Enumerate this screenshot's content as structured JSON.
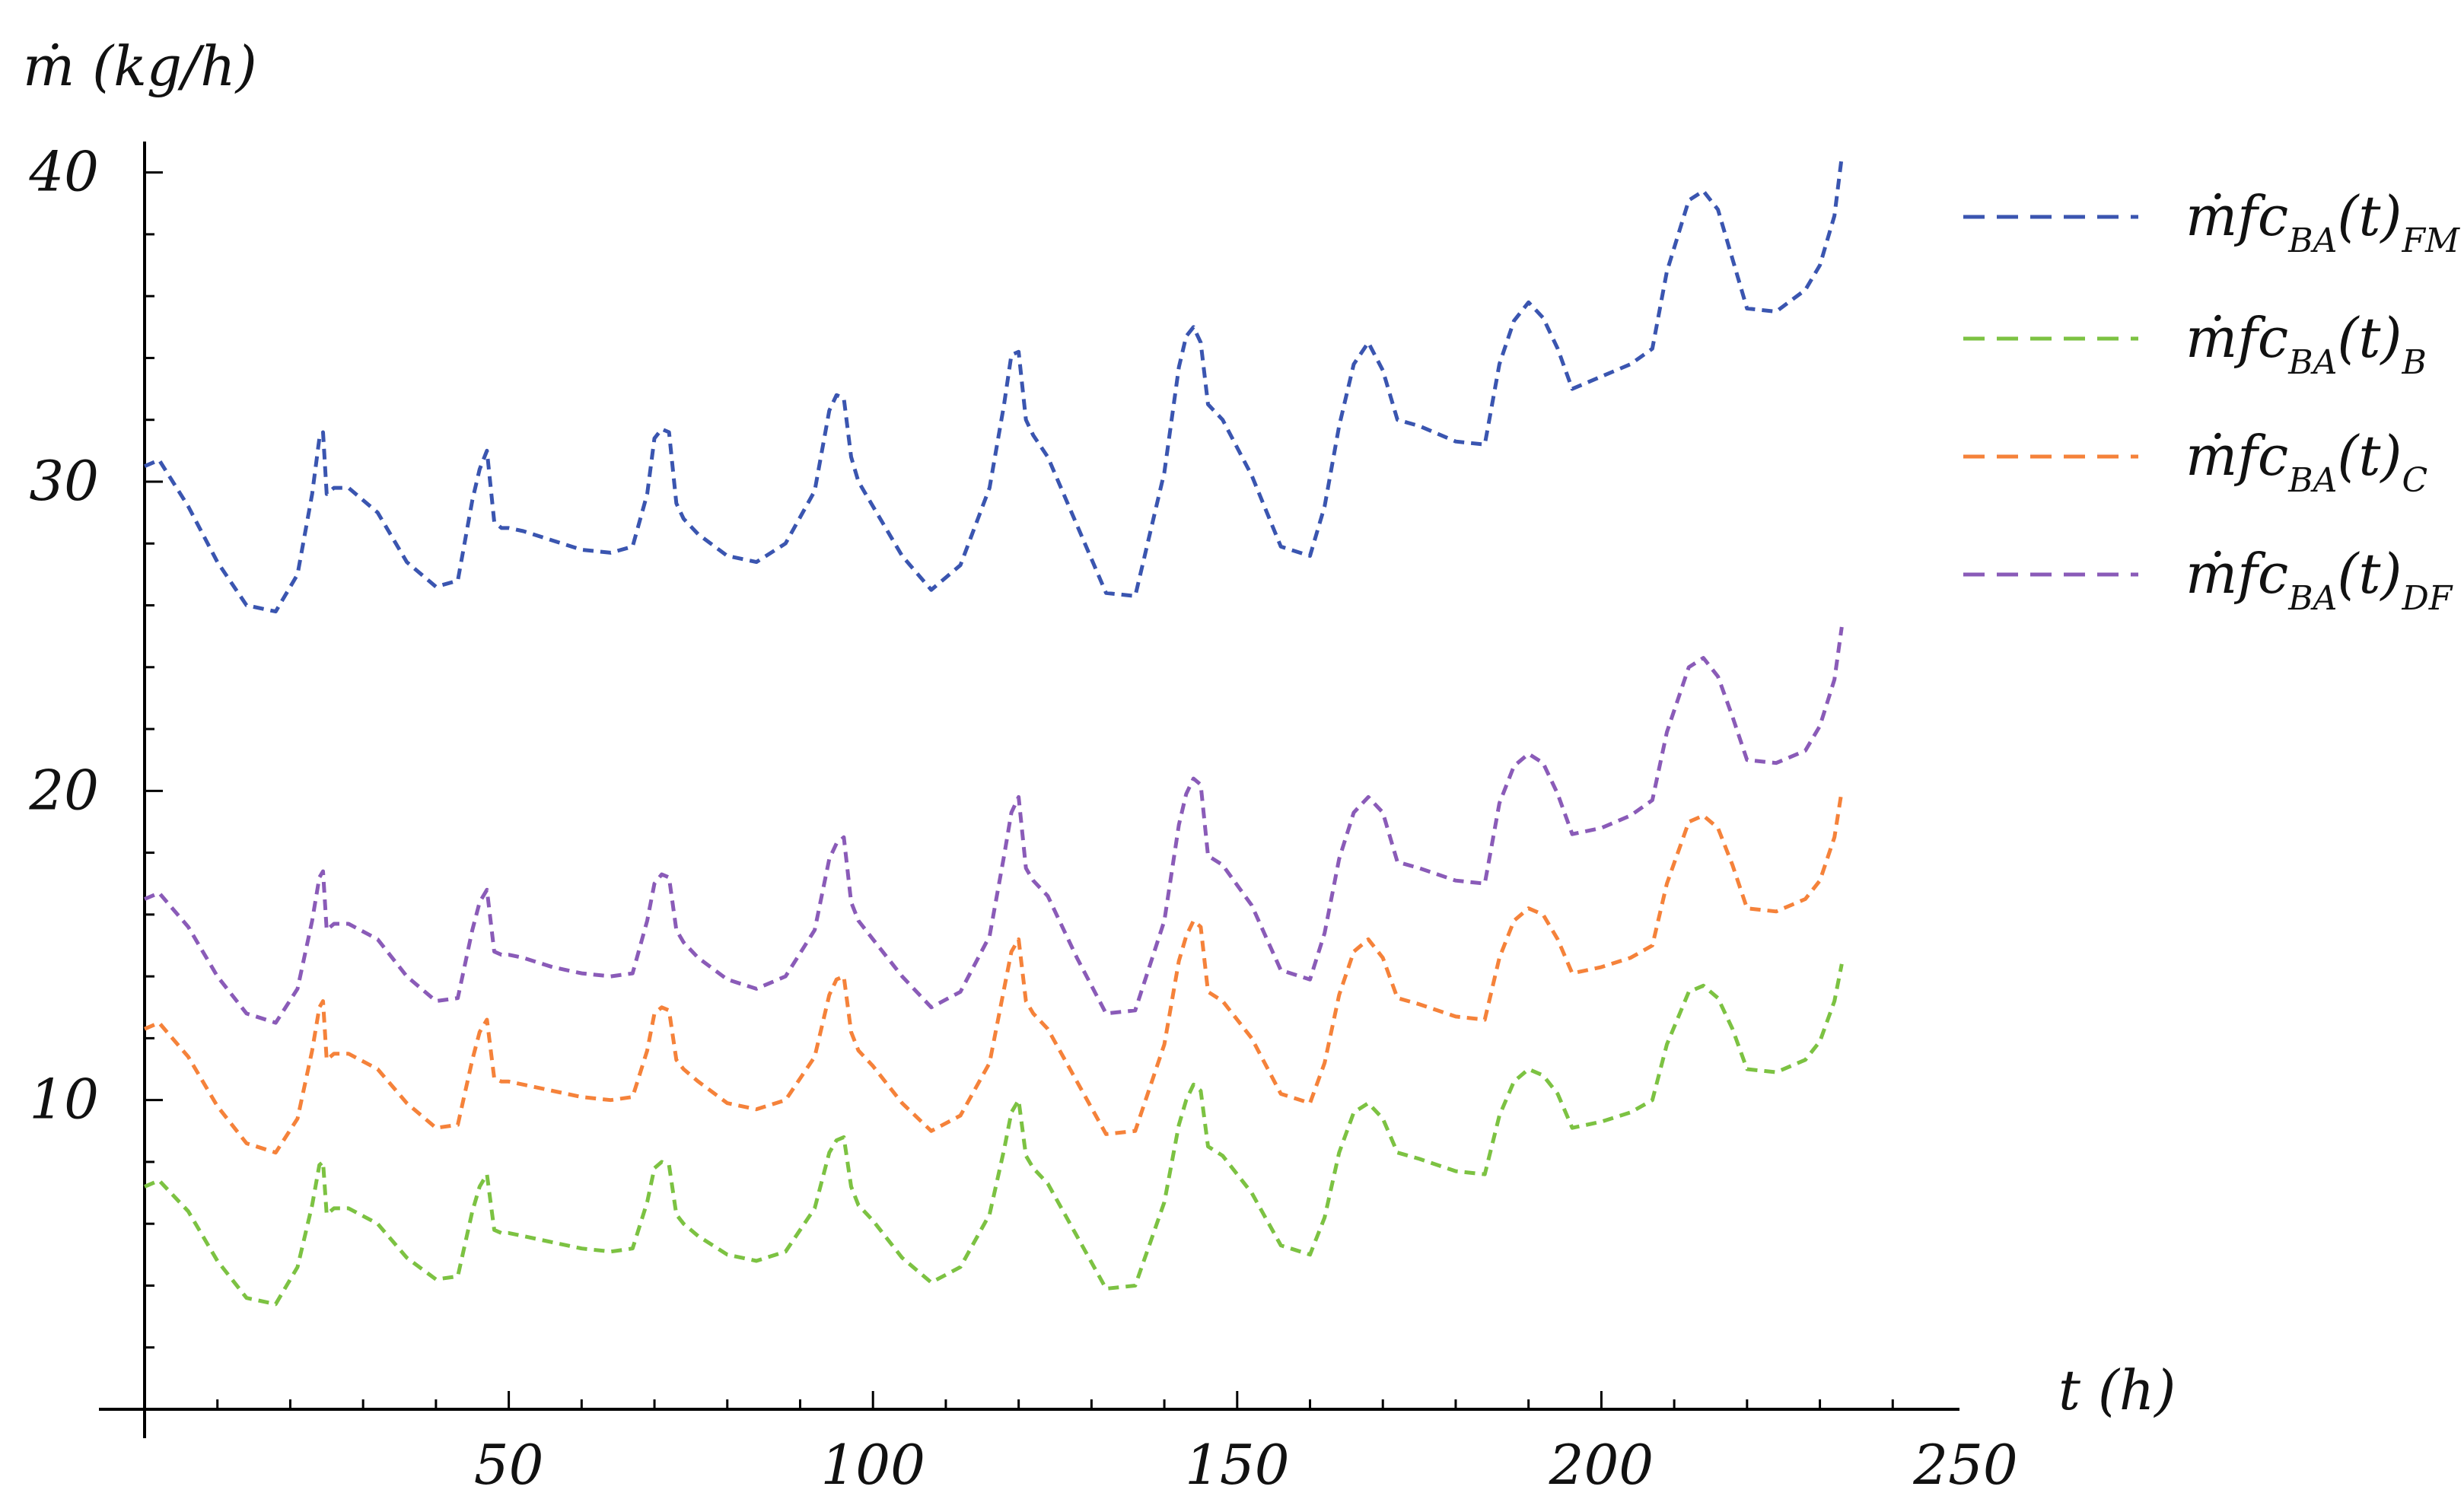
{
  "chart_data": {
    "type": "line",
    "title": "",
    "xlabel": "t (h)",
    "ylabel": "ṁ (kg/h)",
    "xlim": [
      0,
      250
    ],
    "ylim": [
      0,
      41
    ],
    "x_ticks": [
      50,
      100,
      150,
      200,
      250
    ],
    "x_tick_labels": [
      "50",
      "100",
      "150",
      "200",
      "250"
    ],
    "y_ticks": [
      10,
      20,
      30,
      40
    ],
    "y_tick_labels": [
      "10",
      "20",
      "30",
      "40"
    ],
    "grid": false,
    "legend_position": "top-right",
    "x": [
      0,
      2,
      6,
      10,
      14,
      18,
      21,
      23,
      24,
      24.5,
      25,
      26,
      28,
      32,
      36,
      40,
      43,
      45,
      46,
      47,
      48,
      49,
      50,
      52,
      56,
      60,
      64,
      67,
      69,
      70,
      71,
      72,
      73,
      74,
      76,
      80,
      84,
      88,
      92,
      94,
      95,
      96,
      97,
      98,
      100,
      104,
      108,
      112,
      116,
      118,
      119,
      120,
      121,
      122,
      124,
      128,
      132,
      136,
      140,
      142,
      143,
      144,
      145,
      146,
      148,
      152,
      156,
      160,
      162,
      164,
      166,
      168,
      170,
      172,
      175,
      180,
      184,
      186,
      188,
      190,
      192,
      194,
      196,
      200,
      204,
      207,
      209,
      212,
      214,
      216,
      218,
      220,
      224,
      228,
      230,
      232,
      233
    ],
    "series": [
      {
        "name": "ṁfc_BA(t)_FM",
        "color": "#3a55b0",
        "values": [
          30.5,
          30.7,
          29.2,
          27.4,
          26.0,
          25.8,
          27.0,
          29.6,
          31.4,
          31.6,
          29.6,
          29.8,
          29.8,
          29.0,
          27.4,
          26.6,
          26.8,
          29.4,
          30.4,
          31.0,
          28.7,
          28.5,
          28.5,
          28.4,
          28.1,
          27.8,
          27.7,
          27.9,
          29.6,
          31.4,
          31.7,
          31.6,
          29.3,
          28.8,
          28.3,
          27.6,
          27.4,
          28.0,
          29.7,
          32.3,
          32.8,
          32.7,
          30.8,
          30.0,
          29.2,
          27.6,
          26.5,
          27.3,
          29.8,
          32.5,
          34.1,
          34.2,
          32.0,
          31.5,
          30.8,
          28.6,
          26.4,
          26.3,
          30.3,
          33.7,
          34.7,
          35.0,
          34.5,
          32.5,
          32.0,
          30.2,
          27.9,
          27.6,
          29.2,
          31.8,
          33.8,
          34.5,
          33.6,
          32.0,
          31.8,
          31.3,
          31.2,
          33.8,
          35.2,
          35.8,
          35.3,
          34.3,
          33.0,
          33.4,
          33.8,
          34.3,
          36.8,
          39.1,
          39.4,
          38.8,
          37.2,
          35.6,
          35.5,
          36.2,
          37.0,
          38.6,
          40.5
        ]
      },
      {
        "name": "ṁfc_BA(t)_B",
        "color": "#7cc242",
        "values": [
          7.2,
          7.4,
          6.4,
          4.8,
          3.6,
          3.4,
          4.6,
          6.6,
          7.9,
          8.0,
          6.3,
          6.5,
          6.5,
          6.0,
          4.9,
          4.2,
          4.3,
          6.4,
          7.2,
          7.6,
          5.8,
          5.7,
          5.7,
          5.6,
          5.4,
          5.2,
          5.1,
          5.2,
          6.7,
          7.8,
          8.0,
          7.9,
          6.3,
          6.0,
          5.6,
          5.0,
          4.8,
          5.1,
          6.5,
          8.3,
          8.7,
          8.8,
          7.2,
          6.6,
          6.1,
          4.9,
          4.1,
          4.6,
          6.3,
          8.4,
          9.6,
          10.0,
          8.2,
          7.8,
          7.3,
          5.6,
          3.9,
          4.0,
          6.7,
          9.2,
          10.0,
          10.5,
          10.3,
          8.5,
          8.2,
          7.0,
          5.3,
          5.0,
          6.2,
          8.3,
          9.6,
          9.9,
          9.4,
          8.3,
          8.1,
          7.7,
          7.6,
          9.5,
          10.6,
          11.0,
          10.8,
          10.2,
          9.1,
          9.3,
          9.6,
          10.0,
          11.8,
          13.5,
          13.7,
          13.3,
          12.3,
          11.0,
          10.9,
          11.3,
          11.9,
          13.2,
          14.4
        ]
      },
      {
        "name": "ṁfc_BA(t)_C",
        "color": "#f5823a",
        "values": [
          12.3,
          12.5,
          11.4,
          9.8,
          8.6,
          8.3,
          9.4,
          11.6,
          13.0,
          13.2,
          11.3,
          11.5,
          11.5,
          11.0,
          9.9,
          9.1,
          9.2,
          11.3,
          12.2,
          12.6,
          10.7,
          10.6,
          10.6,
          10.5,
          10.3,
          10.1,
          10.0,
          10.1,
          11.6,
          12.8,
          13.0,
          12.9,
          11.3,
          11.0,
          10.6,
          9.9,
          9.7,
          10.0,
          11.4,
          13.4,
          13.9,
          14.0,
          12.2,
          11.6,
          11.1,
          9.9,
          9.0,
          9.5,
          11.2,
          13.6,
          14.8,
          15.2,
          13.2,
          12.8,
          12.3,
          10.6,
          8.9,
          9.0,
          11.8,
          14.5,
          15.3,
          15.8,
          15.6,
          13.5,
          13.2,
          12.0,
          10.2,
          9.9,
          11.2,
          13.4,
          14.8,
          15.2,
          14.6,
          13.3,
          13.1,
          12.7,
          12.6,
          14.6,
          15.8,
          16.2,
          16.0,
          15.2,
          14.1,
          14.3,
          14.6,
          15.0,
          17.0,
          19.0,
          19.2,
          18.8,
          17.6,
          16.2,
          16.1,
          16.5,
          17.1,
          18.5,
          20.0
        ]
      },
      {
        "name": "ṁfc_BA(t)_DF",
        "color": "#8a5bb8",
        "values": [
          16.5,
          16.7,
          15.6,
          14.0,
          12.8,
          12.5,
          13.6,
          15.8,
          17.2,
          17.4,
          15.5,
          15.7,
          15.7,
          15.2,
          14.0,
          13.2,
          13.3,
          15.5,
          16.4,
          16.8,
          14.8,
          14.7,
          14.7,
          14.6,
          14.3,
          14.1,
          14.0,
          14.1,
          15.8,
          17.0,
          17.3,
          17.2,
          15.5,
          15.1,
          14.6,
          13.9,
          13.6,
          14.0,
          15.5,
          17.8,
          18.3,
          18.5,
          16.4,
          15.8,
          15.2,
          14.0,
          13.0,
          13.5,
          15.3,
          17.9,
          19.3,
          19.8,
          17.5,
          17.1,
          16.6,
          14.6,
          12.8,
          12.9,
          15.8,
          18.9,
          19.9,
          20.4,
          20.2,
          17.9,
          17.6,
          16.3,
          14.2,
          13.9,
          15.4,
          17.8,
          19.3,
          19.8,
          19.3,
          17.7,
          17.5,
          17.1,
          17.0,
          19.6,
          20.8,
          21.2,
          20.9,
          19.9,
          18.6,
          18.8,
          19.2,
          19.7,
          21.9,
          24.0,
          24.3,
          23.7,
          22.4,
          21.0,
          20.9,
          21.3,
          22.1,
          23.6,
          25.3
        ]
      }
    ]
  },
  "legend": [
    {
      "main": "ṁfc",
      "sub1": "BA",
      "mid": "(t)",
      "sub2": "FM",
      "color": "#3a55b0"
    },
    {
      "main": "ṁfc",
      "sub1": "BA",
      "mid": "(t)",
      "sub2": "B",
      "color": "#7cc242"
    },
    {
      "main": "ṁfc",
      "sub1": "BA",
      "mid": "(t)",
      "sub2": "C",
      "color": "#f5823a"
    },
    {
      "main": "ṁfc",
      "sub1": "BA",
      "mid": "(t)",
      "sub2": "DF",
      "color": "#8a5bb8"
    }
  ]
}
